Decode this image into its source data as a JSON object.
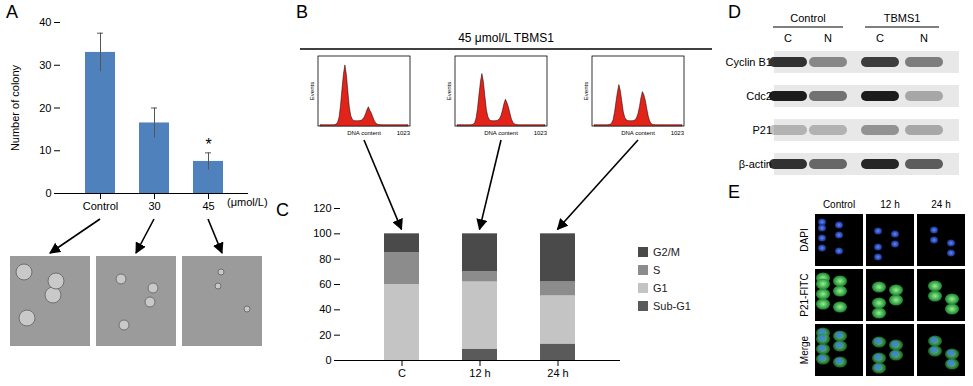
{
  "chart_data": [
    {
      "panel_label": "A",
      "type": "bar",
      "categories": [
        "Control",
        "30",
        "45"
      ],
      "values": [
        33,
        16.5,
        7.5
      ],
      "errors": [
        4.5,
        3.5,
        2
      ],
      "color": "#4f81bd",
      "ylabel": "Number of colony",
      "xlabel": "(μmol/L)",
      "ylim": [
        0,
        40
      ],
      "yticks": [
        0,
        10,
        20,
        30,
        40
      ],
      "annotations": [
        {
          "category": "45",
          "text": "*"
        }
      ]
    },
    {
      "panel_label": "C",
      "type": "bar",
      "stacked": true,
      "categories": [
        "C",
        "12 h",
        "24 h"
      ],
      "series": [
        {
          "name": "Sub-G1",
          "color": "#5a5a5a",
          "values": [
            0,
            9,
            13
          ]
        },
        {
          "name": "G1",
          "color": "#c4c4c4",
          "values": [
            60,
            53,
            38
          ]
        },
        {
          "name": "S",
          "color": "#8c8c8c",
          "values": [
            25,
            8,
            11
          ]
        },
        {
          "name": "G2/M",
          "color": "#4a4a4a",
          "values": [
            15,
            30,
            38
          ]
        }
      ],
      "ylim": [
        0,
        120
      ],
      "yticks": [
        0,
        20,
        40,
        60,
        80,
        100,
        120
      ],
      "legend": "right"
    }
  ],
  "flow": {
    "panel_label": "B",
    "title": "45 μmol/L TBMS1",
    "xlabel": "DNA content",
    "ylabel": "Events",
    "x_tick": "1023"
  },
  "western": {
    "panel_label": "D",
    "groups": [
      "Control",
      "TBMS1"
    ],
    "fractions": [
      "C",
      "N"
    ],
    "proteins": [
      "Cyclin B1",
      "Cdc2",
      "P21",
      "β-actin"
    ]
  },
  "immuno": {
    "panel_label": "E",
    "columns": [
      "Control",
      "12 h",
      "24 h"
    ],
    "rows": [
      "DAPI",
      "P21-FITC",
      "Merge"
    ]
  }
}
